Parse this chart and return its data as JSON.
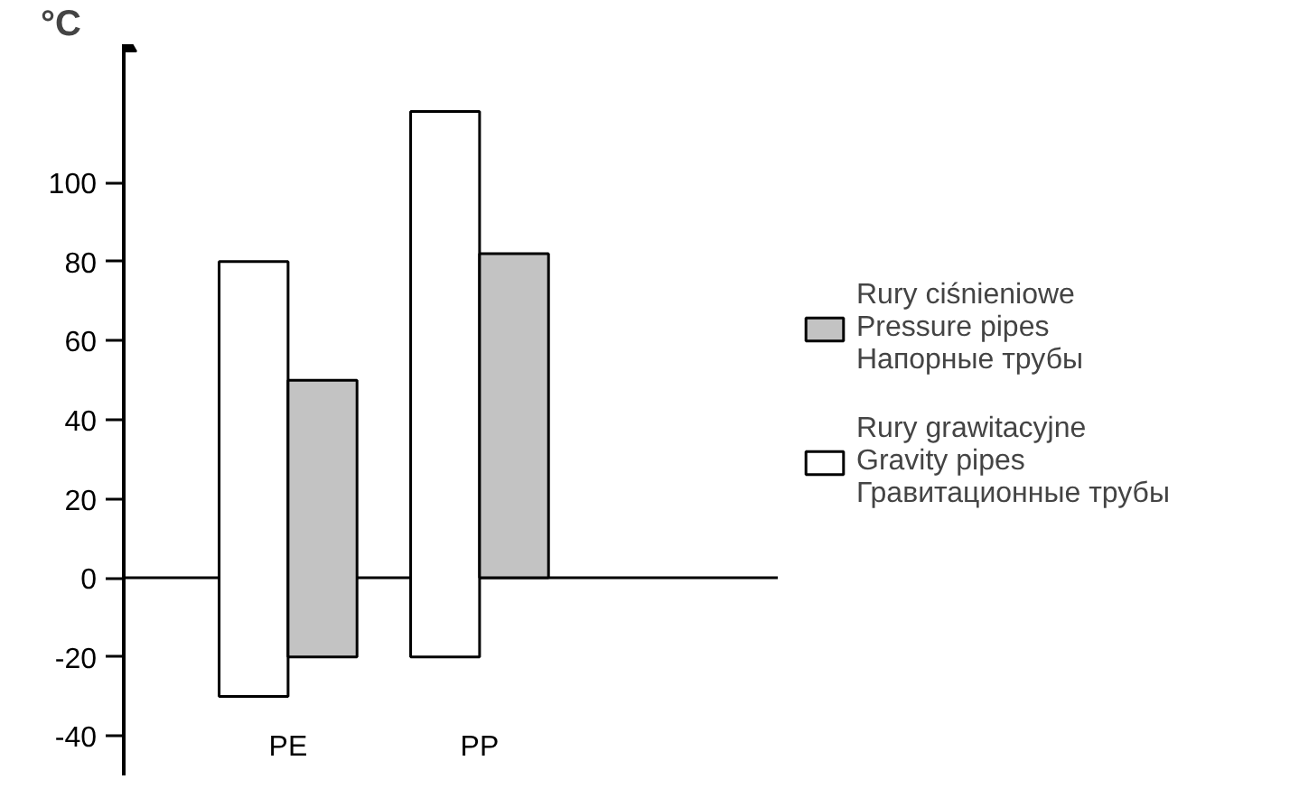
{
  "chart_data": {
    "type": "bar",
    "ylabel": "°C",
    "categories": [
      "PE",
      "PP"
    ],
    "series": [
      {
        "name": "Rury grawitacyjne\nGravity pipes\nГравитационные трубы",
        "color": "#ffffff",
        "values": [
          110,
          138
        ],
        "base": [
          -30,
          -20
        ]
      },
      {
        "name": "Rury ciśnieniowe\nPressure pipes\nНапорные трубы",
        "color": "#c3c3c3",
        "values": [
          70,
          82
        ],
        "base": [
          -20,
          0
        ]
      }
    ],
    "ylim": [
      -50,
      135
    ],
    "yticks": [
      -40,
      -20,
      0,
      20,
      40,
      60,
      80,
      100
    ],
    "ref_lines": [
      {
        "axis": "y",
        "value": 0
      }
    ],
    "grid": false,
    "legend": "right"
  }
}
